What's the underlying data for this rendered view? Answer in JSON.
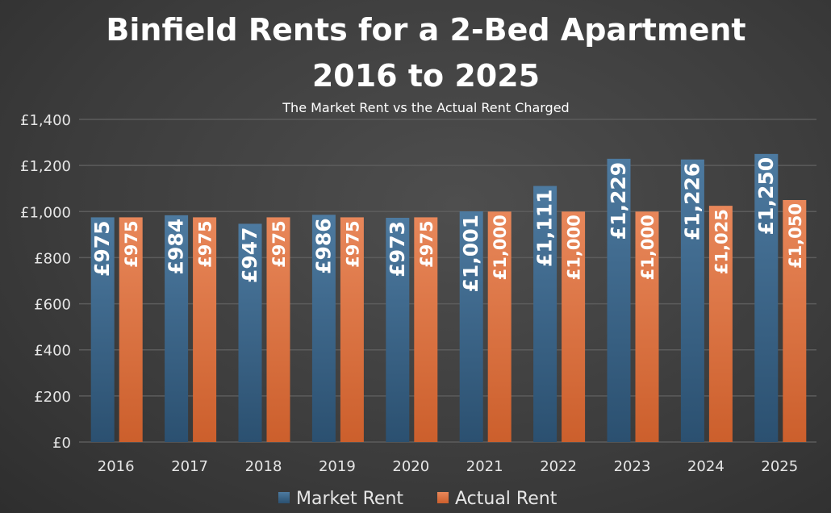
{
  "chart_data": {
    "type": "bar",
    "title": "Binfield Rents for a 2-Bed Apartment",
    "title_line2": "2016 to 2025",
    "subtitle": "The Market Rent vs the Actual Rent Charged",
    "xlabel": "",
    "ylabel": "",
    "ylim": [
      0,
      1400
    ],
    "yticks": [
      0,
      200,
      400,
      600,
      800,
      1000,
      1200,
      1400
    ],
    "ytick_labels": [
      "£0",
      "£200",
      "£400",
      "£600",
      "£800",
      "£1,000",
      "£1,200",
      "£1,400"
    ],
    "grid": true,
    "legend_position": "bottom",
    "categories": [
      "2016",
      "2017",
      "2018",
      "2019",
      "2020",
      "2021",
      "2022",
      "2023",
      "2024",
      "2025"
    ],
    "series": [
      {
        "name": "Market Rent",
        "color": "#3f6789",
        "values": [
          975,
          984,
          947,
          986,
          973,
          1001,
          1111,
          1229,
          1226,
          1250
        ],
        "labels": [
          "£975",
          "£984",
          "£947",
          "£986",
          "£973",
          "£1,001",
          "£1,111",
          "£1,229",
          "£1,226",
          "£1,250"
        ]
      },
      {
        "name": "Actual Rent",
        "color": "#d96b3b",
        "values": [
          975,
          975,
          975,
          975,
          975,
          1000,
          1000,
          1000,
          1025,
          1050
        ],
        "labels": [
          "£975",
          "£975",
          "£975",
          "£975",
          "£975",
          "£1,000",
          "£1,000",
          "£1,000",
          "£1,025",
          "£1,050"
        ]
      }
    ]
  }
}
